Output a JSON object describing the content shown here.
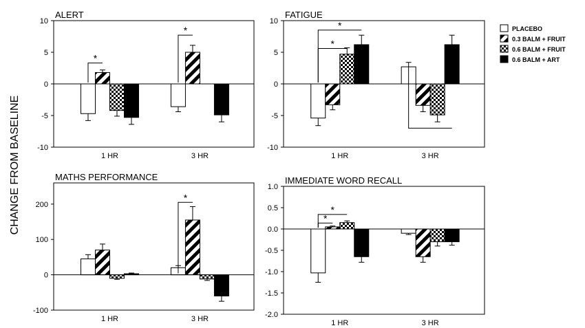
{
  "ylabel": "CHANGE FROM BASELINE",
  "legend": {
    "placement": "top-right",
    "entries": [
      {
        "label": "PLACEBO",
        "pattern": "white"
      },
      {
        "label": "0.3 BALM + FRUIT",
        "pattern": "diagonal"
      },
      {
        "label": "0.6 BALM + FRUIT",
        "pattern": "checker"
      },
      {
        "label": "0.6 BALM + ART",
        "pattern": "black"
      }
    ]
  },
  "chart_data": [
    {
      "type": "bar",
      "title": "ALERT",
      "categories": [
        "1 HR",
        "3 HR"
      ],
      "ylim": [
        -10,
        10
      ],
      "yticks": [
        "10",
        "5",
        "0",
        "-5",
        "-10"
      ],
      "tickvals": [
        10,
        5,
        0,
        -5,
        -10
      ],
      "series": [
        {
          "name": "PLACEBO",
          "values": [
            -4.7,
            -3.6
          ],
          "errors": [
            1.1,
            0.8
          ]
        },
        {
          "name": "0.3 BALM + FRUIT",
          "values": [
            1.8,
            5.0
          ],
          "errors": [
            0.4,
            1.1
          ]
        },
        {
          "name": "0.6 BALM + FRUIT",
          "values": [
            -4.2,
            0
          ],
          "errors": [
            0.9,
            0
          ]
        },
        {
          "name": "0.6 BALM + ART",
          "values": [
            -5.3,
            -4.9
          ],
          "errors": [
            1.1,
            1.1
          ]
        }
      ],
      "annotations": [
        {
          "text": "*",
          "cat": 0,
          "from": 0,
          "to": 1,
          "y": 3.3
        },
        {
          "text": "*",
          "cat": 1,
          "from": 0,
          "to": 1,
          "y": 7.7
        }
      ]
    },
    {
      "type": "bar",
      "title": "FATIGUE",
      "categories": [
        "1 HR",
        "3 HR"
      ],
      "ylim": [
        -10,
        10
      ],
      "yticks": [
        "10",
        "5",
        "0",
        "-5",
        "-10"
      ],
      "tickvals": [
        10,
        5,
        0,
        -5,
        -10
      ],
      "series": [
        {
          "name": "PLACEBO",
          "values": [
            -5.4,
            2.7
          ],
          "errors": [
            1.2,
            0.7
          ]
        },
        {
          "name": "0.3 BALM + FRUIT",
          "values": [
            -3.3,
            -3.4
          ],
          "errors": [
            0.8,
            1.0
          ]
        },
        {
          "name": "0.6 BALM + FRUIT",
          "values": [
            4.7,
            -4.9
          ],
          "errors": [
            1.0,
            1.1
          ]
        },
        {
          "name": "0.6 BALM + ART",
          "values": [
            6.2,
            6.2
          ],
          "errors": [
            1.5,
            1.5
          ]
        }
      ],
      "annotations": [
        {
          "text": "*",
          "cat": 0,
          "from": 0,
          "to": 3,
          "y": 8.5
        },
        {
          "text": "*",
          "cat": 0,
          "from": 0,
          "to": 2,
          "y": 5.6
        }
      ],
      "extra_lines": [
        {
          "cat": 1,
          "from": 0,
          "to": 3,
          "y": -7.0,
          "from_y": 2.7
        }
      ]
    },
    {
      "type": "bar",
      "title": "MATHS PERFORMANCE",
      "categories": [
        "1 HR",
        "3 HR"
      ],
      "ylim": [
        -100,
        260
      ],
      "yticks": [
        "200",
        "100",
        "0",
        "-100"
      ],
      "tickvals": [
        200,
        100,
        0,
        -100
      ],
      "series": [
        {
          "name": "PLACEBO",
          "values": [
            45,
            20
          ],
          "errors": [
            12,
            6
          ]
        },
        {
          "name": "0.3 BALM + FRUIT",
          "values": [
            70,
            155
          ],
          "errors": [
            17,
            38
          ]
        },
        {
          "name": "0.6 BALM + FRUIT",
          "values": [
            -10,
            -12
          ],
          "errors": [
            3,
            4
          ]
        },
        {
          "name": "0.6 BALM + ART",
          "values": [
            3,
            -60
          ],
          "errors": [
            2,
            15
          ]
        }
      ],
      "annotations": [
        {
          "text": "*",
          "cat": 1,
          "from": 0,
          "to": 1,
          "y": 205
        }
      ]
    },
    {
      "type": "bar",
      "title": "IMMEDIATE WORD RECALL",
      "categories": [
        "1 HR",
        "3 HR"
      ],
      "ylim": [
        -2.0,
        1.0
      ],
      "yticks": [
        "1.0",
        "0.5",
        "0.0",
        "-0.5",
        "-1.0",
        "-1.5",
        "-2.0"
      ],
      "tickvals": [
        1.0,
        0.5,
        0.0,
        -0.5,
        -1.0,
        -1.5,
        -2.0
      ],
      "series": [
        {
          "name": "PLACEBO",
          "values": [
            -1.03,
            -0.1
          ],
          "errors": [
            0.22,
            0.03
          ]
        },
        {
          "name": "0.3 BALM + FRUIT",
          "values": [
            0.05,
            -0.65
          ],
          "errors": [
            0.02,
            0.13
          ]
        },
        {
          "name": "0.6 BALM + FRUIT",
          "values": [
            0.15,
            -0.3
          ],
          "errors": [
            0.04,
            0.1
          ]
        },
        {
          "name": "0.6 BALM + ART",
          "values": [
            -0.65,
            -0.3
          ],
          "errors": [
            0.13,
            0.08
          ]
        }
      ],
      "annotations": [
        {
          "text": "*",
          "cat": 0,
          "from": 0,
          "to": 2,
          "y": 0.34
        },
        {
          "text": "*",
          "cat": 0,
          "from": 0,
          "to": 1,
          "y": 0.14
        }
      ]
    }
  ]
}
